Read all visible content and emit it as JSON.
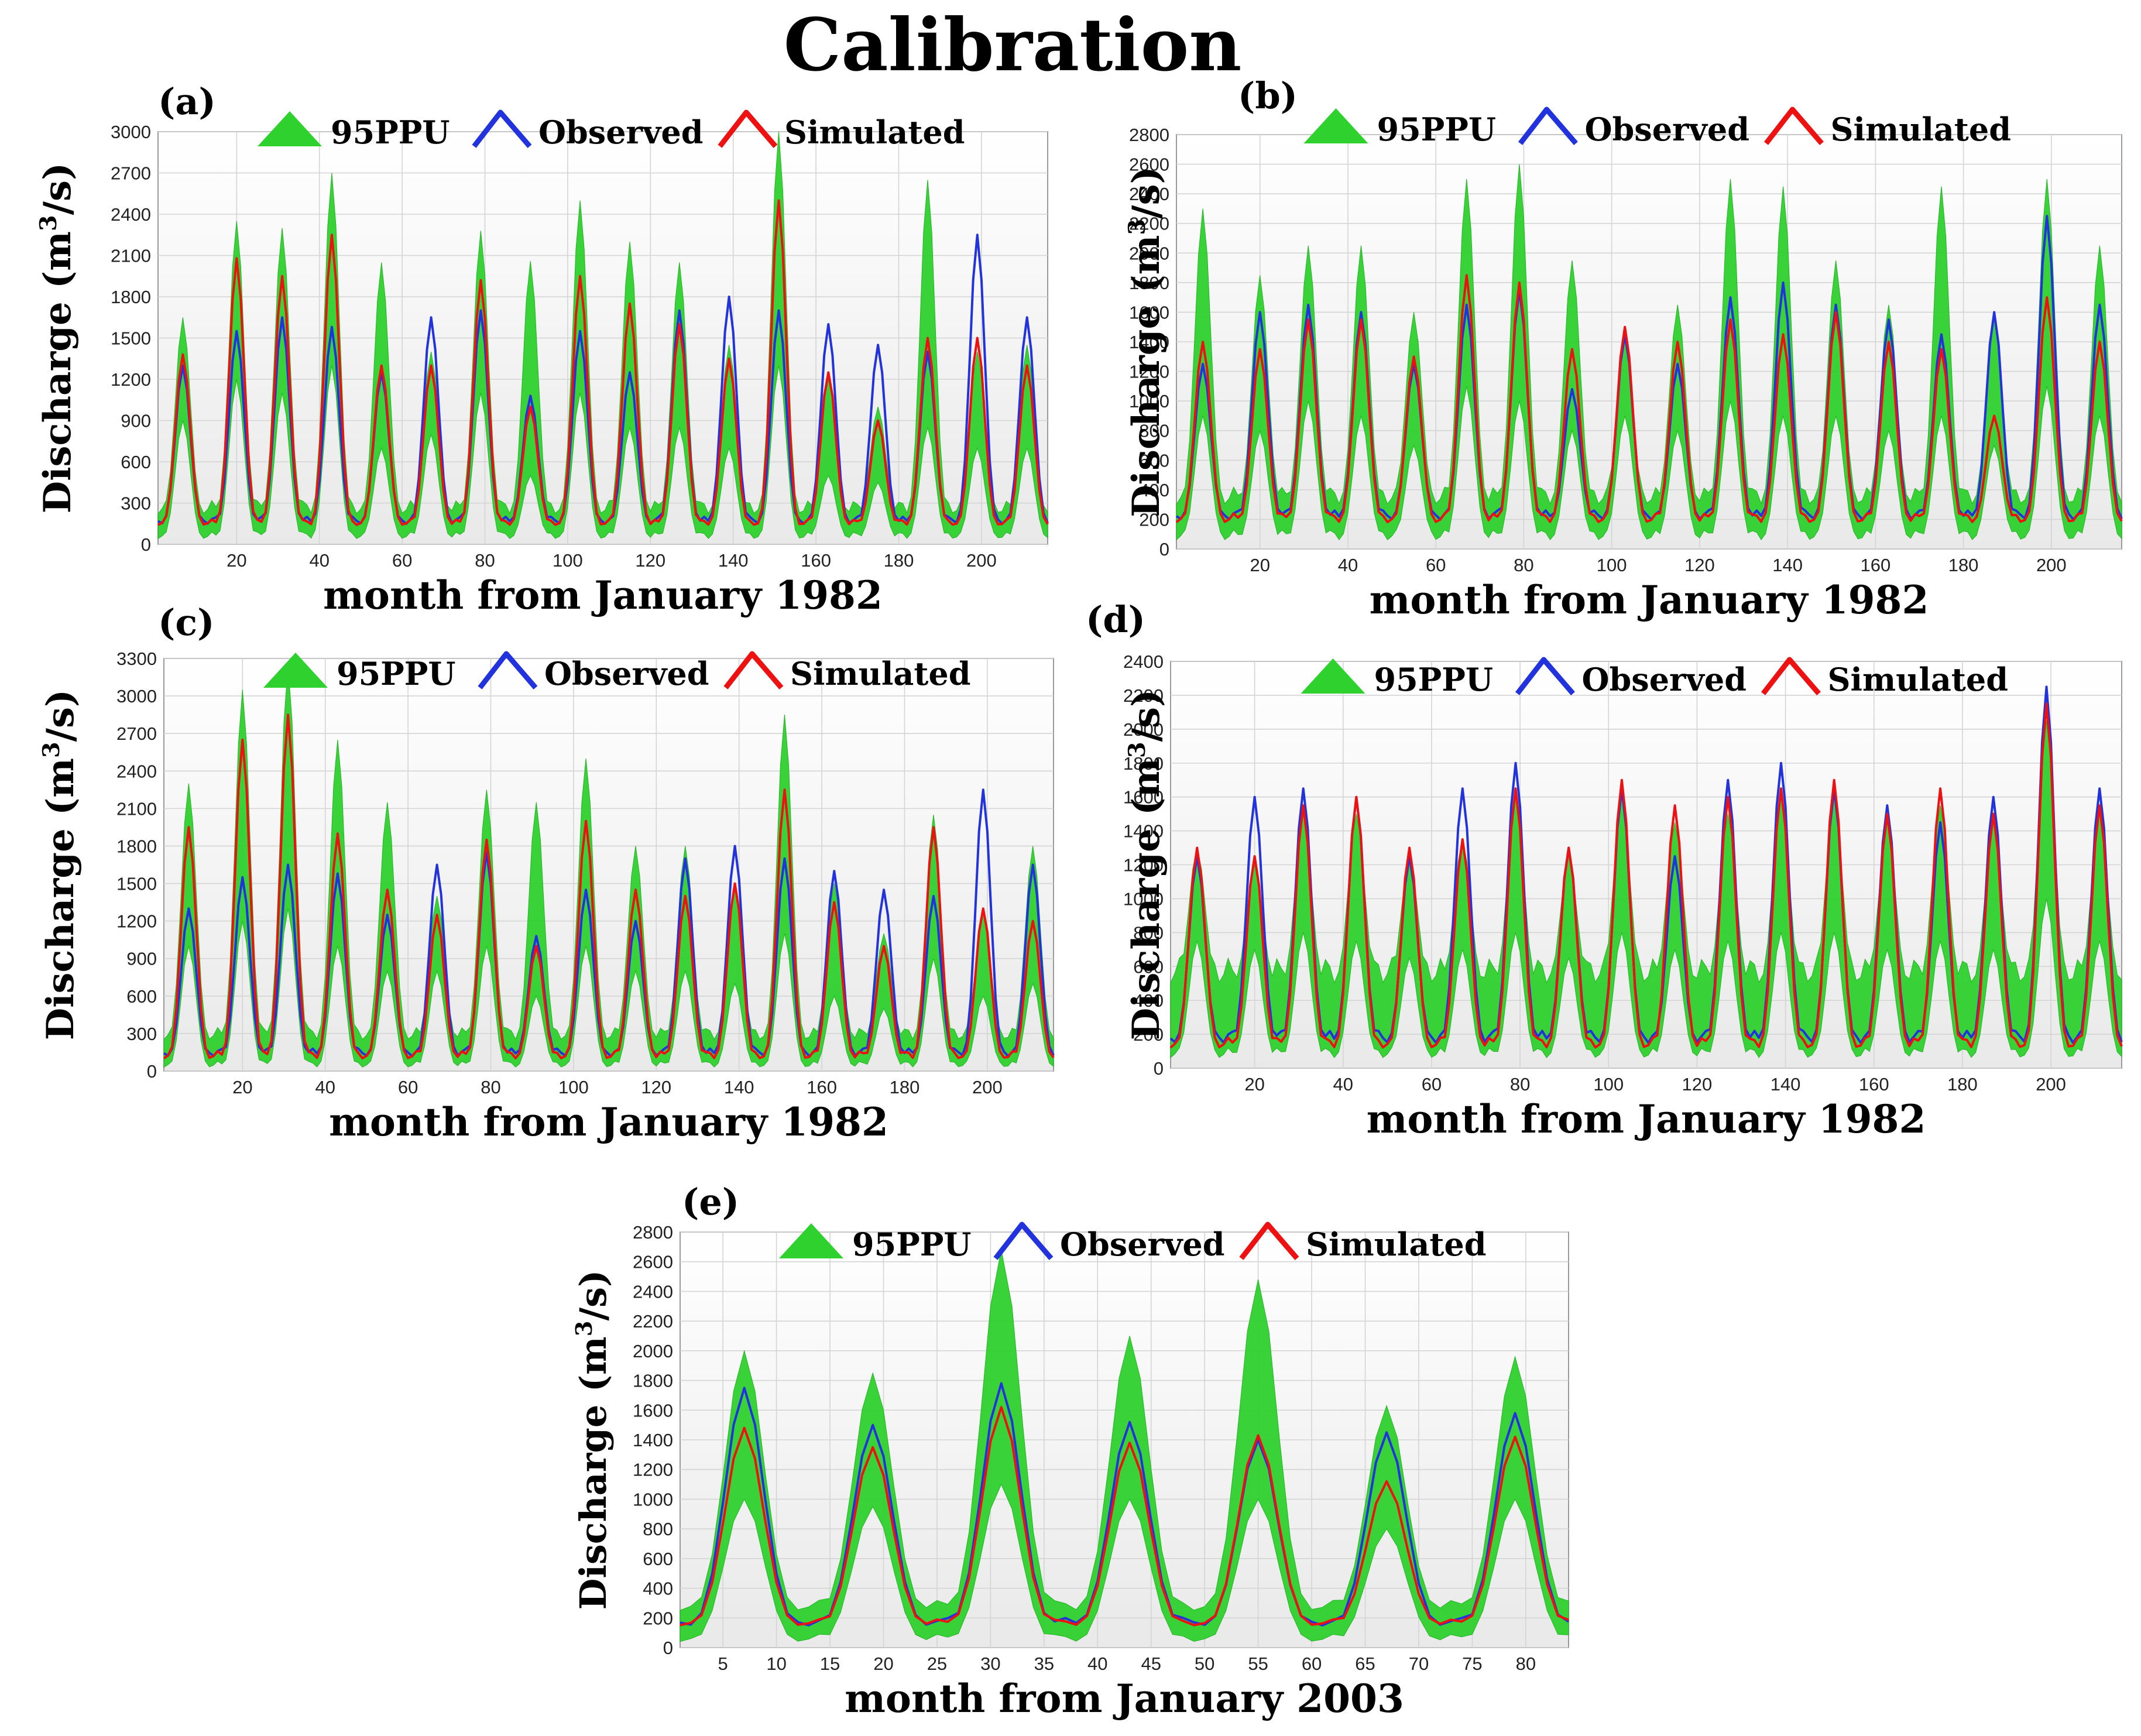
{
  "title": "Calibration",
  "colors": {
    "ppu": "#2ed12e",
    "observed": "#2233dd",
    "simulated": "#ee1111",
    "grid": "#d4d4d4"
  },
  "chart_data": [
    {
      "id": "a",
      "panel_label": "(a)",
      "type": "line",
      "xlabel": "month from January 1982",
      "ylabel": "Discharge (m",
      "ylabel_sup": "3",
      "ylabel_tail": "/s)",
      "legend": [
        "95PPU",
        "Observed",
        "Simulated"
      ],
      "n": 216,
      "xlim": [
        1,
        216
      ],
      "x_ticks": [
        20,
        40,
        60,
        80,
        100,
        120,
        140,
        160,
        180,
        200
      ],
      "ylim": [
        0,
        3000
      ],
      "y_ticks": [
        0,
        300,
        600,
        900,
        1200,
        1500,
        1800,
        2100,
        2400,
        2700,
        3000
      ],
      "peaks": {
        "months": [
          7,
          20,
          31,
          43,
          55,
          67,
          79,
          91,
          103,
          115,
          127,
          139,
          151,
          163,
          175,
          187,
          199,
          211
        ],
        "observed": [
          1300,
          1550,
          1650,
          1580,
          1250,
          1650,
          1700,
          1080,
          1550,
          1250,
          1700,
          1800,
          1700,
          1600,
          1450,
          1400,
          2250,
          1650
        ],
        "simulated": [
          1380,
          2080,
          1950,
          2250,
          1300,
          1300,
          1920,
          1000,
          1950,
          1750,
          1600,
          1350,
          2500,
          1250,
          900,
          1500,
          1500,
          1300
        ],
        "ppu_upper": [
          1650,
          2350,
          2300,
          2700,
          2050,
          1400,
          2280,
          2060,
          2500,
          2200,
          2050,
          1450,
          3000,
          1200,
          1000,
          2650,
          1400,
          1450
        ],
        "ppu_lower": [
          900,
          1200,
          1100,
          1300,
          700,
          800,
          1100,
          500,
          1100,
          850,
          850,
          700,
          1300,
          500,
          450,
          850,
          700,
          700
        ]
      },
      "base": {
        "observed": [
          150,
          200
        ],
        "simulated": [
          140,
          180
        ],
        "ppu_upper": [
          220,
          320
        ],
        "ppu_lower": [
          40,
          90
        ]
      }
    },
    {
      "id": "b",
      "panel_label": "(b)",
      "type": "line",
      "xlabel": "month from January 1982",
      "ylabel": "Discharge (m",
      "ylabel_sup": "3",
      "ylabel_tail": "/s)",
      "legend": [
        "95PPU",
        "Observed",
        "Simulated"
      ],
      "n": 216,
      "xlim": [
        1,
        216
      ],
      "x_ticks": [
        20,
        40,
        60,
        80,
        100,
        120,
        140,
        160,
        180,
        200
      ],
      "ylim": [
        0,
        2800
      ],
      "y_ticks": [
        0,
        200,
        400,
        600,
        800,
        1000,
        1200,
        1400,
        1600,
        1800,
        2000,
        2200,
        2400,
        2600,
        2800
      ],
      "peaks": {
        "months": [
          7,
          20,
          31,
          43,
          55,
          67,
          79,
          91,
          103,
          115,
          127,
          139,
          151,
          163,
          175,
          187,
          199,
          211
        ],
        "observed": [
          1250,
          1600,
          1650,
          1600,
          1250,
          1650,
          1750,
          1080,
          1450,
          1250,
          1700,
          1800,
          1650,
          1550,
          1450,
          1600,
          2250,
          1650
        ],
        "simulated": [
          1400,
          1350,
          1550,
          1550,
          1300,
          1850,
          1800,
          1350,
          1500,
          1400,
          1550,
          1450,
          1600,
          1400,
          1350,
          900,
          1700,
          1400
        ],
        "ppu_upper": [
          2300,
          1850,
          2050,
          2050,
          1600,
          2500,
          2600,
          1950,
          1450,
          1650,
          2500,
          2450,
          1950,
          1650,
          2450,
          1600,
          2500,
          2050
        ],
        "ppu_lower": [
          900,
          800,
          1000,
          900,
          700,
          1100,
          1000,
          800,
          900,
          800,
          1000,
          900,
          900,
          800,
          900,
          700,
          1100,
          900
        ]
      },
      "base": {
        "observed": [
          200,
          260
        ],
        "simulated": [
          180,
          240
        ],
        "ppu_upper": [
          300,
          420
        ],
        "ppu_lower": [
          60,
          130
        ]
      }
    },
    {
      "id": "c",
      "panel_label": "(c)",
      "type": "line",
      "xlabel": "month from January 1982",
      "ylabel": "Discharge (m",
      "ylabel_sup": "3",
      "ylabel_tail": "/s)",
      "legend": [
        "95PPU",
        "Observed",
        "Simulated"
      ],
      "n": 216,
      "xlim": [
        1,
        216
      ],
      "x_ticks": [
        20,
        40,
        60,
        80,
        100,
        120,
        140,
        160,
        180,
        200
      ],
      "ylim": [
        0,
        3300
      ],
      "y_ticks": [
        0,
        300,
        600,
        900,
        1200,
        1500,
        1800,
        2100,
        2400,
        2700,
        3000,
        3300
      ],
      "peaks": {
        "months": [
          7,
          20,
          31,
          43,
          55,
          67,
          79,
          91,
          103,
          115,
          127,
          139,
          151,
          163,
          175,
          187,
          199,
          211
        ],
        "observed": [
          1300,
          1550,
          1650,
          1580,
          1250,
          1650,
          1750,
          1080,
          1450,
          1200,
          1700,
          1800,
          1700,
          1600,
          1450,
          1400,
          2250,
          1650
        ],
        "simulated": [
          1950,
          2650,
          2850,
          1900,
          1450,
          1250,
          1850,
          1000,
          2000,
          1450,
          1400,
          1500,
          2250,
          1350,
          1000,
          1950,
          1300,
          1200
        ],
        "ppu_upper": [
          2300,
          3050,
          3250,
          2650,
          2150,
          1400,
          2250,
          2150,
          2500,
          1800,
          1800,
          1500,
          2850,
          1500,
          1100,
          2050,
          1300,
          1800
        ],
        "ppu_lower": [
          1000,
          1200,
          1300,
          1000,
          800,
          800,
          1000,
          600,
          1000,
          800,
          800,
          700,
          1100,
          600,
          500,
          900,
          600,
          700
        ]
      },
      "base": {
        "observed": [
          120,
          180
        ],
        "simulated": [
          100,
          160
        ],
        "ppu_upper": [
          250,
          350
        ],
        "ppu_lower": [
          30,
          80
        ]
      }
    },
    {
      "id": "d",
      "panel_label": "(d)",
      "type": "line",
      "xlabel": "month from January 1982",
      "ylabel": "Discharge (m",
      "ylabel_sup": "3",
      "ylabel_tail": "/s)",
      "legend": [
        "95PPU",
        "Observed",
        "Simulated"
      ],
      "n": 216,
      "xlim": [
        1,
        216
      ],
      "x_ticks": [
        20,
        40,
        60,
        80,
        100,
        120,
        140,
        160,
        180,
        200
      ],
      "ylim": [
        0,
        2400
      ],
      "y_ticks": [
        0,
        200,
        400,
        600,
        800,
        1000,
        1200,
        1400,
        1600,
        1800,
        2000,
        2200,
        2400
      ],
      "peaks": {
        "months": [
          7,
          20,
          31,
          43,
          55,
          67,
          79,
          91,
          103,
          115,
          127,
          139,
          151,
          163,
          175,
          187,
          199,
          211
        ],
        "observed": [
          1250,
          1600,
          1650,
          1600,
          1250,
          1650,
          1800,
          1300,
          1650,
          1250,
          1700,
          1800,
          1650,
          1550,
          1450,
          1600,
          2250,
          1650
        ],
        "simulated": [
          1300,
          1250,
          1550,
          1600,
          1300,
          1350,
          1650,
          1300,
          1700,
          1550,
          1600,
          1650,
          1700,
          1500,
          1650,
          1500,
          2150,
          1550
        ],
        "ppu_upper": [
          1300,
          1200,
          1500,
          1500,
          1250,
          1350,
          1600,
          1250,
          1600,
          1450,
          1500,
          1600,
          1600,
          1450,
          1550,
          1450,
          2050,
          1500
        ],
        "ppu_lower": [
          750,
          700,
          800,
          750,
          650,
          700,
          800,
          650,
          800,
          700,
          750,
          800,
          800,
          700,
          750,
          700,
          1000,
          750
        ]
      },
      "base": {
        "observed": [
          150,
          220
        ],
        "simulated": [
          120,
          180
        ],
        "ppu_upper": [
          500,
          650
        ],
        "ppu_lower": [
          60,
          120
        ]
      }
    },
    {
      "id": "e",
      "panel_label": "(e)",
      "type": "line",
      "xlabel": "month from January 2003",
      "ylabel": "Discharge (m",
      "ylabel_sup": "3",
      "ylabel_tail": "/s)",
      "legend": [
        "95PPU",
        "Observed",
        "Simulated"
      ],
      "n": 84,
      "xlim": [
        1,
        84
      ],
      "x_ticks": [
        5,
        10,
        15,
        20,
        25,
        30,
        35,
        40,
        45,
        50,
        55,
        60,
        65,
        70,
        75,
        80
      ],
      "ylim": [
        0,
        2800
      ],
      "y_ticks": [
        0,
        200,
        400,
        600,
        800,
        1000,
        1200,
        1400,
        1600,
        1800,
        2000,
        2200,
        2400,
        2600,
        2800
      ],
      "peaks": {
        "months": [
          7,
          19,
          31,
          43,
          55,
          67,
          79
        ],
        "observed": [
          1750,
          1500,
          1780,
          1520,
          1400,
          1450,
          1580
        ],
        "simulated": [
          1480,
          1350,
          1620,
          1380,
          1430,
          1120,
          1420
        ],
        "ppu_upper": [
          2000,
          1850,
          2680,
          2100,
          2480,
          1630,
          1960
        ],
        "ppu_lower": [
          1000,
          950,
          1100,
          1000,
          1000,
          800,
          1000
        ]
      },
      "base": {
        "observed": [
          150,
          200
        ],
        "simulated": [
          150,
          190
        ],
        "ppu_upper": [
          250,
          320
        ],
        "ppu_lower": [
          40,
          90
        ]
      }
    }
  ]
}
